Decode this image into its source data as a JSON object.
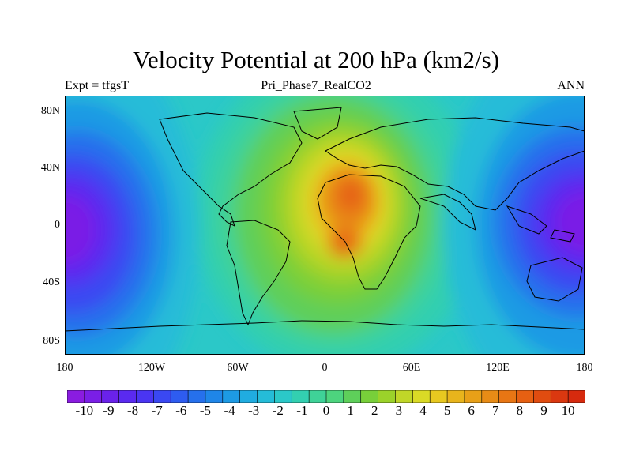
{
  "title": "Velocity Potential at 200 hPa (km2/s)",
  "subtitle_left": "Expt = tfgsT",
  "subtitle_center": "Pri_Phase7_RealCO2",
  "subtitle_right": "ANN",
  "map_data": {
    "type": "filled-contour-map",
    "projection": "cylindrical-equidistant",
    "lon_range": [
      -180,
      180
    ],
    "lat_range": [
      -90,
      90
    ],
    "lat_ticks": [
      "80N",
      "40N",
      "0",
      "40S",
      "80S"
    ],
    "lon_ticks": [
      "180",
      "120W",
      "60W",
      "0",
      "60E",
      "120E",
      "180"
    ],
    "field_centers": [
      {
        "kind": "max",
        "lon": 15,
        "lat": 10,
        "value": 9
      },
      {
        "kind": "min",
        "lon": -165,
        "lat": -8,
        "value": -9.5
      },
      {
        "kind": "min",
        "lon": 155,
        "lat": 5,
        "value": -9
      }
    ]
  },
  "colorbar": {
    "labels": [
      "-10",
      "-9",
      "-8",
      "-7",
      "-6",
      "-5",
      "-4",
      "-3",
      "-2",
      "-1",
      "0",
      "1",
      "2",
      "3",
      "4",
      "5",
      "6",
      "7",
      "8",
      "9",
      "10"
    ],
    "colors": [
      "#8a1ce0",
      "#7a1fe6",
      "#6a22ea",
      "#5a2af0",
      "#4a35f2",
      "#3a48f2",
      "#2e5cf0",
      "#2670ec",
      "#1f86e8",
      "#1d9ae4",
      "#20ace0",
      "#25bcd8",
      "#2bc8c8",
      "#33cfb0",
      "#3fd298",
      "#4dd47e",
      "#5ecf5a",
      "#78cf3a",
      "#9bd22a",
      "#c0d628",
      "#dada26",
      "#e8c820",
      "#e8b41c",
      "#e8a018",
      "#e88c16",
      "#e87614",
      "#e66012",
      "#e04c10",
      "#da3810",
      "#d62a0e"
    ]
  }
}
